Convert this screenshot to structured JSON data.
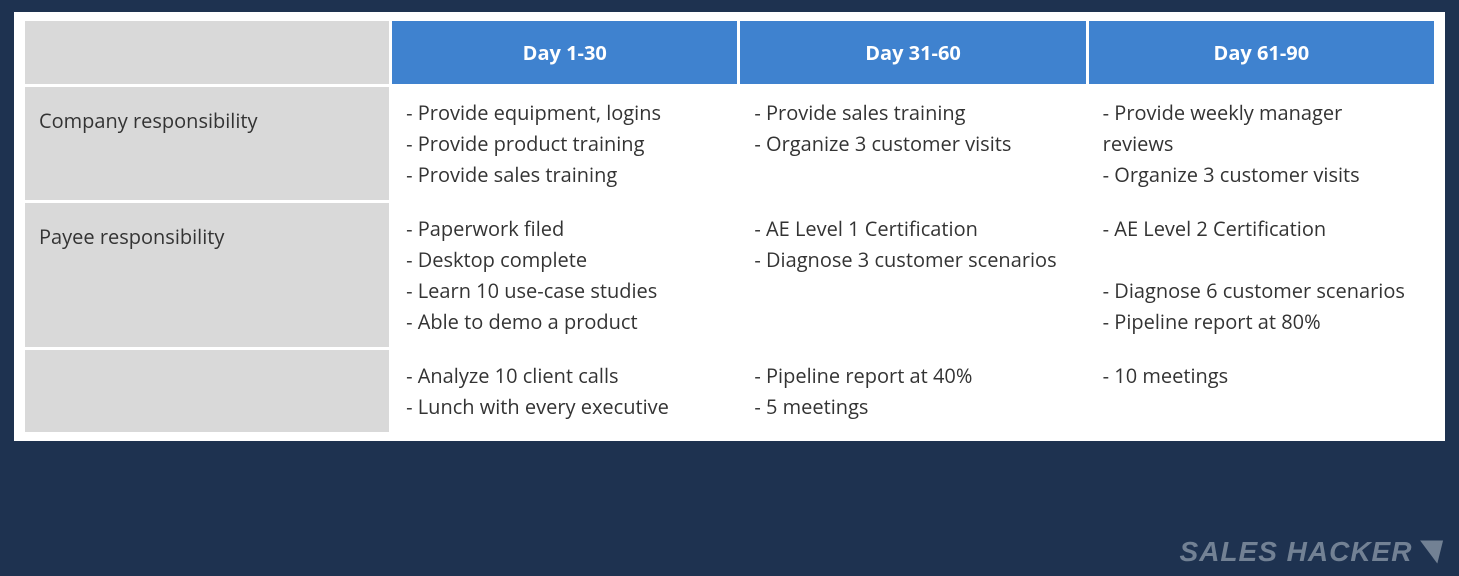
{
  "colors": {
    "page_bg": "#1e3250",
    "frame_bg": "#ffffff",
    "header_bg": "#3f82cf",
    "header_text": "#ffffff",
    "row_label_bg": "#d9d9d9",
    "cell_text": "#333333",
    "logo_text": "#b7c2cc"
  },
  "table": {
    "columns": [
      "Day 1-30",
      "Day 31-60",
      "Day 61-90"
    ],
    "rows": [
      {
        "label": "Company responsibility",
        "cells": [
          "- Provide equipment, logins\n- Provide product training\n- Provide sales training",
          "- Provide sales training\n- Organize 3 customer visits",
          "- Provide weekly manager reviews\n- Organize 3 customer visits"
        ]
      },
      {
        "label": "Payee responsibility",
        "cells": [
          "- Paperwork filed\n- Desktop complete\n- Learn 10 use-case studies\n- Able to demo a product",
          "- AE Level 1 Certification\n- Diagnose 3 customer scenarios",
          "- AE Level 2 Certification\n\n- Diagnose 6 customer scenarios\n- Pipeline report at 80%"
        ]
      },
      {
        "label": "",
        "cells": [
          "- Analyze 10 client calls\n- Lunch with every executive",
          "- Pipeline report at 40%\n- 5 meetings",
          "- 10 meetings"
        ]
      }
    ]
  },
  "footer": {
    "logo_text": "SALES HACKER",
    "arrow_glyph": "◥"
  }
}
